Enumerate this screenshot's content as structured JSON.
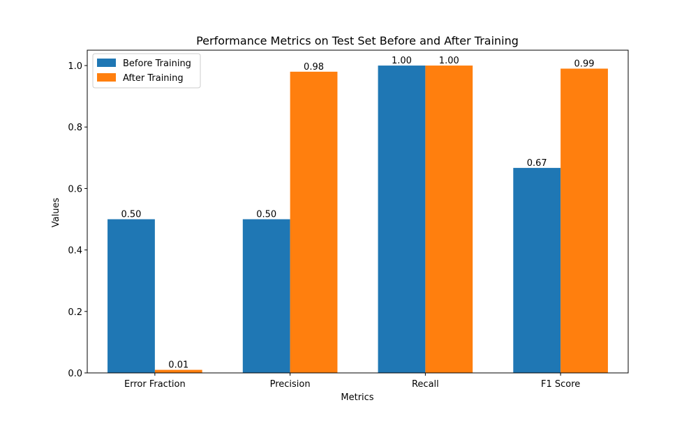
{
  "chart_data": {
    "type": "bar",
    "title": "Performance Metrics on Test Set Before and After Training",
    "xlabel": "Metrics",
    "ylabel": "Values",
    "categories": [
      "Error Fraction",
      "Precision",
      "Recall",
      "F1 Score"
    ],
    "series": [
      {
        "name": "Before Training",
        "values": [
          0.5,
          0.5,
          1.0,
          0.667
        ],
        "value_labels": [
          "0.50",
          "0.50",
          "1.00",
          "0.67"
        ],
        "color": "#1f77b4"
      },
      {
        "name": "After Training",
        "values": [
          0.01,
          0.98,
          1.0,
          0.99
        ],
        "value_labels": [
          "0.01",
          "0.98",
          "1.00",
          "0.99"
        ],
        "color": "#ff7f0e"
      }
    ],
    "ylim": [
      0,
      1.05
    ],
    "yticks": [
      0.0,
      0.2,
      0.4,
      0.6,
      0.8,
      1.0
    ],
    "ytick_labels": [
      "0.0",
      "0.2",
      "0.4",
      "0.6",
      "0.8",
      "1.0"
    ],
    "grid": false,
    "legend_position": "top-left"
  }
}
